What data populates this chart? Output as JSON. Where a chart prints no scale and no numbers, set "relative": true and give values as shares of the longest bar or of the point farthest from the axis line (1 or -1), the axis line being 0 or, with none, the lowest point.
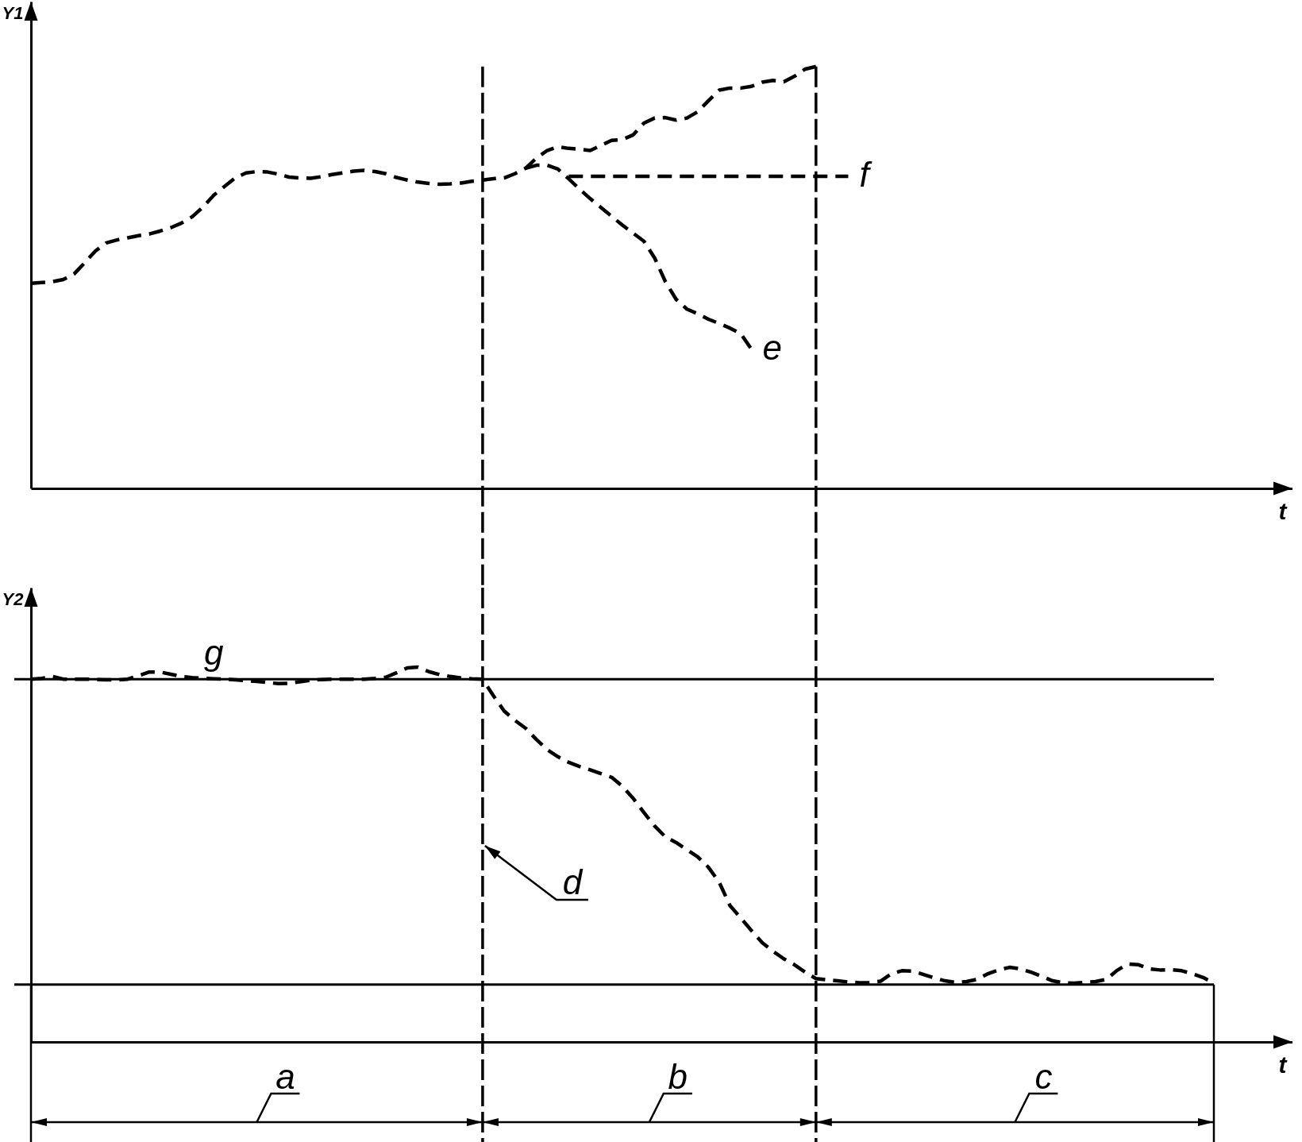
{
  "chart_data": [
    {
      "type": "line",
      "relative": true,
      "ylabel": "Y1",
      "xlabel": "t",
      "line_style": "dashed",
      "categories": [
        null,
        null,
        null,
        null,
        null,
        null,
        null,
        null,
        null,
        null,
        null,
        null,
        null,
        null,
        null,
        null,
        null,
        null,
        null,
        null,
        null,
        null,
        null,
        null,
        null,
        null,
        null,
        null,
        null,
        null,
        null,
        null,
        null,
        null,
        null,
        null,
        null,
        null,
        null,
        null,
        null,
        null,
        null,
        null,
        null,
        null,
        null,
        null,
        null,
        null,
        null,
        null,
        null,
        null,
        null,
        null,
        null,
        null,
        null,
        null,
        null,
        null,
        null,
        null,
        null,
        null,
        null,
        null,
        null,
        null,
        null,
        null,
        null,
        null,
        null,
        null,
        null,
        null,
        null,
        null,
        null,
        null,
        null,
        null,
        null,
        null,
        null,
        null,
        null,
        null,
        null,
        null,
        null,
        null,
        null,
        null,
        null,
        null,
        null,
        null,
        null,
        null,
        null,
        null,
        null,
        null,
        null,
        null,
        null,
        null,
        null
      ],
      "series": [
        {
          "color": "#000000",
          "values": [
            0.486,
            0.488,
            0.49,
            0.495,
            0.508,
            0.535,
            0.563,
            0.582,
            0.589,
            0.594,
            0.599,
            0.603,
            0.61,
            0.618,
            0.629,
            0.644,
            0.667,
            0.695,
            0.716,
            0.736,
            0.748,
            0.751,
            0.75,
            0.745,
            0.738,
            0.736,
            0.735,
            0.739,
            0.744,
            0.748,
            0.752,
            0.754,
            0.751,
            0.746,
            0.737,
            0.731,
            0.726,
            0.723,
            0.721,
            0.722,
            0.724,
            0.728,
            0.731,
            0.734,
            0.736,
            0.746,
            0.759,
            0.783,
            0.801,
            0.81,
            0.806,
            0.804,
            0.801,
            0.813,
            0.825,
            0.827,
            0.838,
            0.866,
            0.878,
            0.879,
            0.873,
            0.878,
            0.893,
            0.919,
            0.944,
            0.949,
            0.949,
            0.953,
            0.963,
            0.967,
            0.964,
            0.977,
            0.994,
            1.0,
            null,
            null,
            null,
            null,
            null,
            null,
            null,
            null,
            null,
            null,
            null,
            null,
            null,
            null,
            null,
            null,
            null,
            null,
            null,
            null,
            null,
            null,
            null,
            null,
            null,
            null,
            null,
            null,
            null,
            null,
            null,
            null,
            null,
            null,
            null,
            null,
            null
          ]
        },
        {
          "name": "e",
          "color": "#000000",
          "values": [
            null,
            null,
            null,
            null,
            null,
            null,
            null,
            null,
            null,
            null,
            null,
            null,
            null,
            null,
            null,
            null,
            null,
            null,
            null,
            null,
            null,
            null,
            null,
            null,
            null,
            null,
            null,
            null,
            null,
            null,
            null,
            null,
            null,
            null,
            null,
            null,
            null,
            null,
            null,
            null,
            null,
            null,
            null,
            null,
            null,
            null,
            0.759,
            0.766,
            0.766,
            0.757,
            0.734,
            0.71,
            0.687,
            0.666,
            0.645,
            0.624,
            0.605,
            0.586,
            0.546,
            0.49,
            0.448,
            0.425,
            0.414,
            0.401,
            0.391,
            0.38,
            0.367,
            0.33,
            null,
            null,
            null,
            null,
            null,
            null,
            null,
            null,
            null,
            null,
            null,
            null,
            null,
            null,
            null,
            null,
            null,
            null,
            null,
            null,
            null,
            null,
            null,
            null,
            null,
            null,
            null,
            null,
            null,
            null,
            null,
            null,
            null,
            null,
            null,
            null,
            null,
            null,
            null,
            null,
            null,
            null,
            null
          ]
        },
        {
          "name": "f",
          "color": "#000000",
          "values": [
            null,
            null,
            null,
            null,
            null,
            null,
            null,
            null,
            null,
            null,
            null,
            null,
            null,
            null,
            null,
            null,
            null,
            null,
            null,
            null,
            null,
            null,
            null,
            null,
            null,
            null,
            null,
            null,
            null,
            null,
            null,
            null,
            null,
            null,
            null,
            null,
            null,
            null,
            null,
            null,
            null,
            null,
            null,
            null,
            null,
            null,
            null,
            null,
            null,
            null,
            0.74,
            0.74,
            0.74,
            0.74,
            0.74,
            0.74,
            0.74,
            0.74,
            0.74,
            0.74,
            0.74,
            0.74,
            0.74,
            0.74,
            0.74,
            0.74,
            0.74,
            0.74,
            0.74,
            0.74,
            0.74,
            0.74,
            0.74,
            0.74,
            0.74,
            0.74,
            0.74,
            null,
            null,
            null,
            null,
            null,
            null,
            null,
            null,
            null,
            null,
            null,
            null,
            null,
            null,
            null,
            null,
            null,
            null,
            null,
            null,
            null,
            null,
            null,
            null,
            null,
            null,
            null,
            null,
            null,
            null,
            null,
            null,
            null,
            null
          ]
        }
      ]
    },
    {
      "type": "line",
      "relative": true,
      "ylabel": "Y2",
      "xlabel": "t",
      "line_style": "dashed",
      "categories": [
        null,
        null,
        null,
        null,
        null,
        null,
        null,
        null,
        null,
        null,
        null,
        null,
        null,
        null,
        null,
        null,
        null,
        null,
        null,
        null,
        null,
        null,
        null,
        null,
        null,
        null,
        null,
        null,
        null,
        null,
        null,
        null,
        null,
        null,
        null,
        null,
        null,
        null,
        null,
        null,
        null,
        null,
        null,
        null,
        null,
        null,
        null,
        null,
        null,
        null,
        null,
        null,
        null,
        null,
        null,
        null,
        null,
        null,
        null,
        null,
        null,
        null,
        null,
        null,
        null,
        null,
        null,
        null,
        null,
        null,
        null,
        null,
        null,
        null,
        null,
        null,
        null,
        null,
        null,
        null,
        null,
        null,
        null,
        null,
        null,
        null,
        null,
        null,
        null,
        null,
        null,
        null,
        null,
        null,
        null,
        null,
        null,
        null,
        null,
        null,
        null,
        null,
        null,
        null,
        null,
        null,
        null,
        null,
        null,
        null,
        null
      ],
      "series": [
        {
          "name": "g",
          "color": "#000000",
          "values": [
            0.968,
            0.97,
            0.975,
            0.968,
            0.968,
            0.968,
            0.967,
            0.966,
            0.966,
            0.968,
            0.977,
            0.987,
            0.987,
            0.981,
            0.975,
            0.972,
            0.97,
            0.969,
            0.968,
            0.966,
            0.964,
            0.962,
            0.959,
            0.956,
            0.957,
            0.961,
            0.965,
            0.967,
            0.968,
            0.968,
            0.968,
            0.968,
            0.97,
            0.973,
            0.985,
            0.998,
            1.0,
            0.988,
            0.98,
            0.975,
            0.971,
            0.969,
            0.968,
            0.924,
            0.883,
            0.858,
            0.837,
            0.807,
            0.78,
            0.761,
            0.746,
            0.735,
            0.726,
            0.716,
            0.706,
            0.682,
            0.65,
            0.612,
            0.576,
            0.547,
            0.532,
            0.513,
            0.494,
            0.466,
            0.426,
            0.364,
            0.331,
            0.297,
            0.265,
            0.242,
            0.222,
            0.206,
            0.186,
            0.169,
            0.166,
            0.163,
            0.16,
            0.158,
            0.158,
            0.162,
            0.182,
            0.19,
            0.189,
            0.18,
            0.171,
            0.163,
            0.159,
            0.161,
            0.167,
            0.182,
            0.192,
            0.199,
            0.195,
            0.186,
            0.175,
            0.163,
            0.158,
            0.157,
            0.159,
            0.161,
            0.167,
            0.191,
            0.208,
            0.206,
            0.195,
            0.192,
            0.193,
            0.19,
            0.182,
            0.172,
            0.157
          ]
        }
      ],
      "ref_lines": [
        {
          "axis": "y",
          "value": 0.968,
          "color": "#000000"
        },
        {
          "axis": "y",
          "value": 0.153,
          "color": "#000000"
        }
      ],
      "annotations": [
        "d",
        "a",
        "b",
        "c"
      ]
    }
  ]
}
